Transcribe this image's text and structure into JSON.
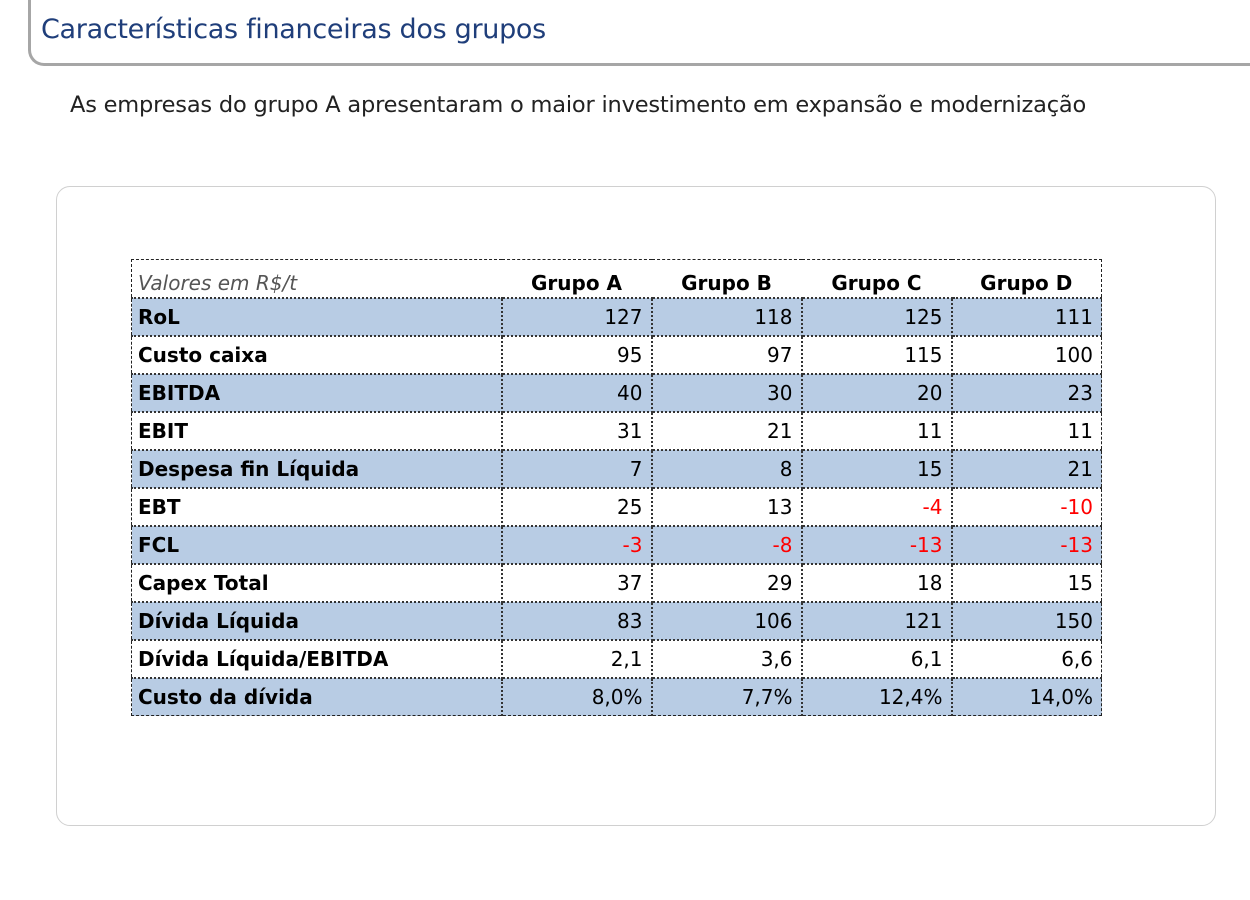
{
  "header": {
    "title": "Características financeiras dos grupos"
  },
  "subtitle": "As empresas do grupo A apresentaram o maior investimento em expansão e modernização",
  "table": {
    "corner_label": "Valores em R$/t",
    "columns": [
      "Grupo A",
      "Grupo B",
      "Grupo C",
      "Grupo D"
    ],
    "rows": [
      {
        "label": "RoL",
        "values": [
          "127",
          "118",
          "125",
          "111"
        ],
        "negative": [
          false,
          false,
          false,
          false
        ]
      },
      {
        "label": "Custo caixa",
        "values": [
          "95",
          "97",
          "115",
          "100"
        ],
        "negative": [
          false,
          false,
          false,
          false
        ]
      },
      {
        "label": "EBITDA",
        "values": [
          "40",
          "30",
          "20",
          "23"
        ],
        "negative": [
          false,
          false,
          false,
          false
        ]
      },
      {
        "label": "EBIT",
        "values": [
          "31",
          "21",
          "11",
          "11"
        ],
        "negative": [
          false,
          false,
          false,
          false
        ]
      },
      {
        "label": "Despesa fin Líquida",
        "values": [
          "7",
          "8",
          "15",
          "21"
        ],
        "negative": [
          false,
          false,
          false,
          false
        ]
      },
      {
        "label": "EBT",
        "values": [
          "25",
          "13",
          "-4",
          "-10"
        ],
        "negative": [
          false,
          false,
          true,
          true
        ]
      },
      {
        "label": "FCL",
        "values": [
          "-3",
          "-8",
          "-13",
          "-13"
        ],
        "negative": [
          true,
          true,
          true,
          true
        ]
      },
      {
        "label": "Capex Total",
        "values": [
          "37",
          "29",
          "18",
          "15"
        ],
        "negative": [
          false,
          false,
          false,
          false
        ]
      },
      {
        "label": "Dívida Líquida",
        "values": [
          "83",
          "106",
          "121",
          "150"
        ],
        "negative": [
          false,
          false,
          false,
          false
        ]
      },
      {
        "label": "Dívida Líquida/EBITDA",
        "values": [
          "2,1",
          "3,6",
          "6,1",
          "6,6"
        ],
        "negative": [
          false,
          false,
          false,
          false
        ]
      },
      {
        "label": "Custo da dívida",
        "values": [
          "8,0%",
          "7,7%",
          "12,4%",
          "14,0%"
        ],
        "negative": [
          false,
          false,
          false,
          false
        ]
      }
    ]
  },
  "colors": {
    "title": "#1f3e7a",
    "row_shade": "#b8cce4",
    "negative": "#ff0000"
  }
}
